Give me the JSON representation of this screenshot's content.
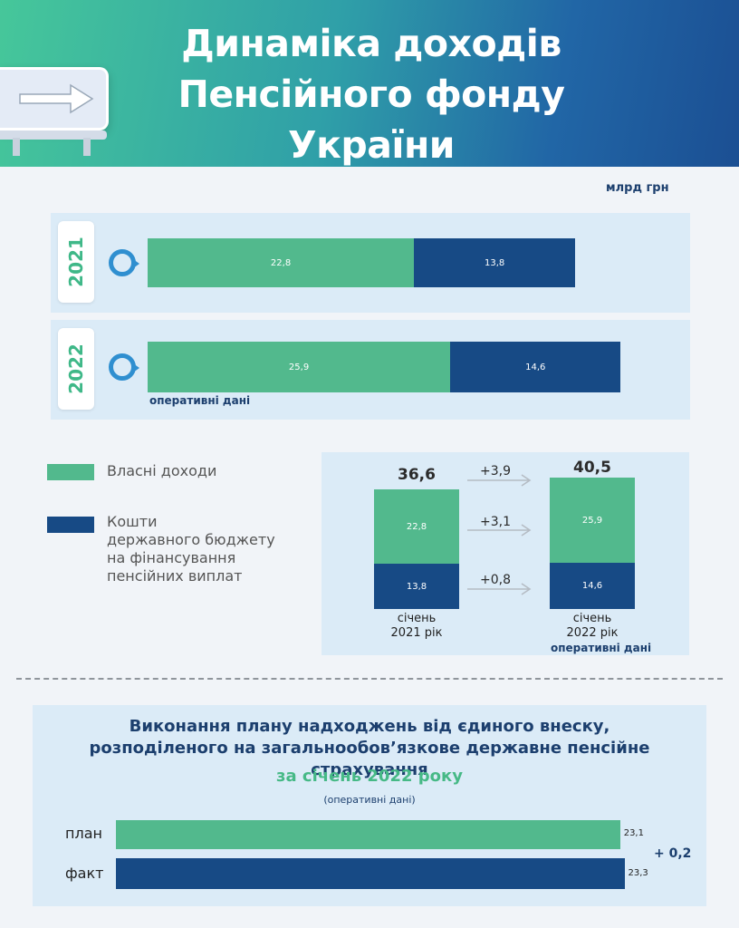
{
  "header": {
    "title_line1": "Динаміка доходів",
    "title_line2": "Пенсійного фонду України"
  },
  "unit": "млрд грн",
  "colors": {
    "own_income": "#52b98d",
    "state_budget": "#174a85",
    "accent_text": "#1c3f6e"
  },
  "year_bars": [
    {
      "year": "2021",
      "own": 22.8,
      "own_label": "22,8",
      "budget": 13.8,
      "budget_label": "13,8",
      "note": ""
    },
    {
      "year": "2022",
      "own": 25.9,
      "own_label": "25,9",
      "budget": 14.6,
      "budget_label": "14,6",
      "note": "оперативні дані"
    }
  ],
  "legend": {
    "own": "Власні доходи",
    "budget_line1": "Кошти",
    "budget_line2": "державного бюджету",
    "budget_line3": "на фінансування",
    "budget_line4": "пенсійних виплат"
  },
  "comparison": {
    "left": {
      "total": "36,6",
      "own": "22,8",
      "budget": "13,8",
      "label_line1": "січень",
      "label_line2": "2021 рік"
    },
    "right": {
      "total": "40,5",
      "own": "25,9",
      "budget": "14,6",
      "label_line1": "січень",
      "label_line2": "2022 рік",
      "note": "оперативні дані"
    },
    "deltas": {
      "total": "+3,9",
      "own": "+3,1",
      "budget": "+0,8"
    }
  },
  "plan": {
    "title_line1": "Виконання плану надходжень від єдиного внеску,",
    "title_line2": "розподіленого на загальнообов’язкове державне пенсійне страхування",
    "period": "за січень 2022 року",
    "note": "(оперативні дані)",
    "rows": [
      {
        "label": "план",
        "value": 23.1,
        "value_label": "23,1"
      },
      {
        "label": "факт",
        "value": 23.3,
        "value_label": "23,3"
      }
    ],
    "delta": "+ 0,2"
  },
  "chart_data": [
    {
      "type": "bar",
      "categories": [
        "2021",
        "2022"
      ],
      "series": [
        {
          "name": "Власні доходи",
          "values": [
            22.8,
            25.9
          ]
        },
        {
          "name": "Кошти державного бюджету на фінансування пенсійних виплат",
          "values": [
            13.8,
            14.6
          ]
        }
      ],
      "title": "Динаміка доходів Пенсійного фонду України",
      "ylabel": "млрд грн"
    },
    {
      "type": "bar",
      "categories": [
        "січень 2021 рік",
        "січень 2022 рік"
      ],
      "series": [
        {
          "name": "Власні доходи",
          "values": [
            22.8,
            25.9
          ]
        },
        {
          "name": "Кошти державного бюджету на фінансування пенсійних виплат",
          "values": [
            13.8,
            14.6
          ]
        }
      ],
      "totals": [
        36.6,
        40.5
      ]
    },
    {
      "type": "bar",
      "categories": [
        "план",
        "факт"
      ],
      "values": [
        23.1,
        23.3
      ],
      "title": "Виконання плану надходжень від єдиного внеску, розподіленого на загальнообов’язкове державне пенсійне страхування"
    }
  ]
}
